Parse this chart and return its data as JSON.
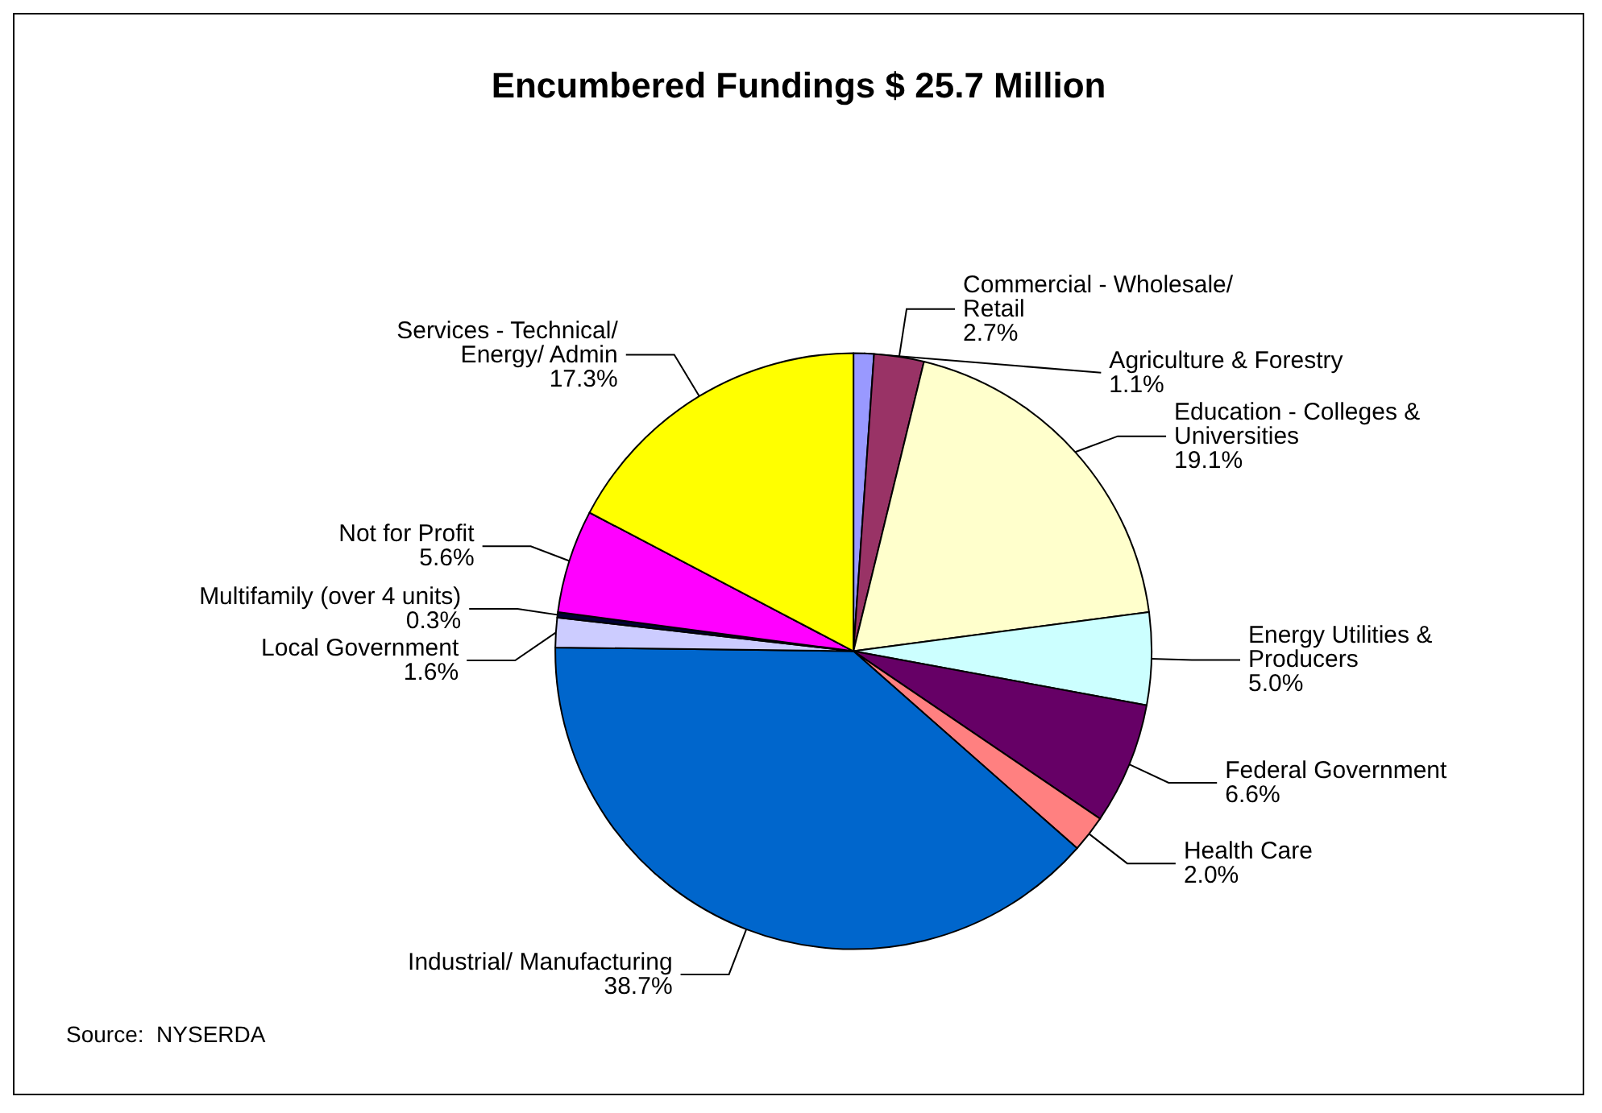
{
  "chart_data": {
    "type": "pie",
    "title": "Encumbered Fundings $ 25.7 Million",
    "categories": [
      "Agriculture & Forestry",
      "Commercial - Wholesale/Retail",
      "Education - Colleges & Universities",
      "Energy Utilities & Producers",
      "Federal Government",
      "Health Care",
      "Industrial/ Manufacturing",
      "Local Government",
      "Multifamily (over 4 units)",
      "Not for Profit",
      "Services - Technical/Energy/ Admin"
    ],
    "values": [
      1.1,
      2.7,
      19.1,
      5.0,
      6.6,
      2.0,
      38.7,
      1.6,
      0.3,
      5.6,
      17.3
    ],
    "value_labels": [
      "1.1%",
      "2.7%",
      "19.1%",
      "5.0%",
      "6.6%",
      "2.0%",
      "38.7%",
      "1.6%",
      "0.3%",
      "5.6%",
      "17.3%"
    ],
    "colors": [
      "#9999ff",
      "#993366",
      "#ffffcc",
      "#ccffff",
      "#660066",
      "#ff8080",
      "#0066cc",
      "#ccccff",
      "#000033",
      "#ff00ff",
      "#ffff00"
    ],
    "legend": false,
    "annotations": [
      "Source:  NYSERDA"
    ]
  }
}
